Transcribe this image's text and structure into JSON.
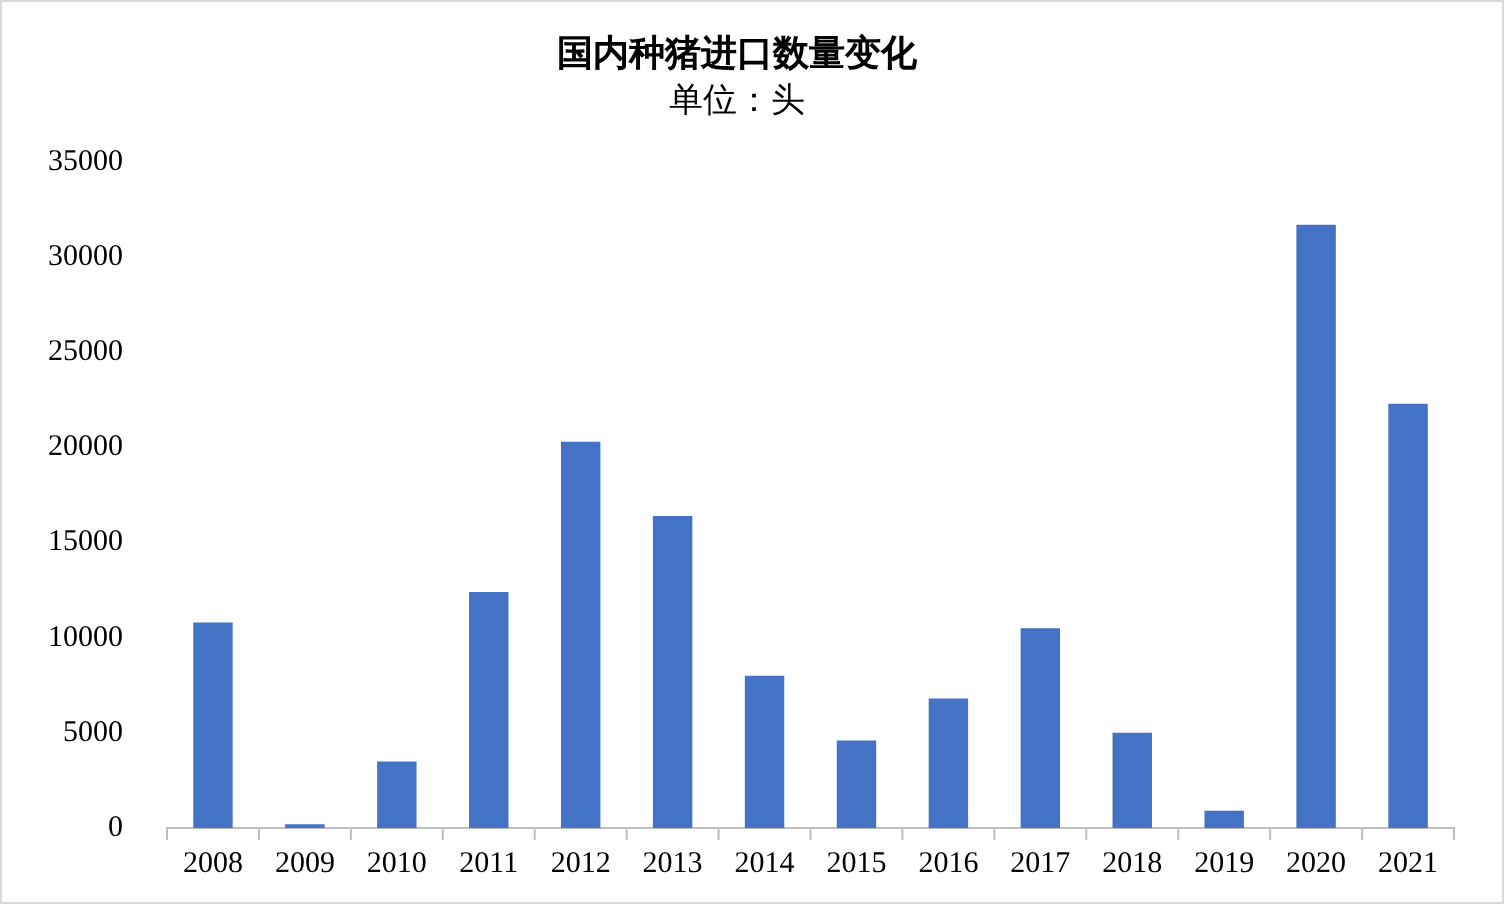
{
  "chart_data": {
    "type": "bar",
    "title": "国内种猪进口数量变化",
    "subtitle": "单位：头",
    "categories": [
      "2008",
      "2009",
      "2010",
      "2011",
      "2012",
      "2013",
      "2014",
      "2015",
      "2016",
      "2017",
      "2018",
      "2019",
      "2020",
      "2021"
    ],
    "values": [
      10800,
      200,
      3500,
      12400,
      20300,
      16400,
      8000,
      4600,
      6800,
      10500,
      5000,
      900,
      31700,
      22300
    ],
    "color": "#4472c4",
    "ylim": [
      0,
      35000
    ],
    "yticks": [
      0,
      5000,
      10000,
      15000,
      20000,
      25000,
      30000,
      35000
    ],
    "grid": false,
    "legend": false
  }
}
